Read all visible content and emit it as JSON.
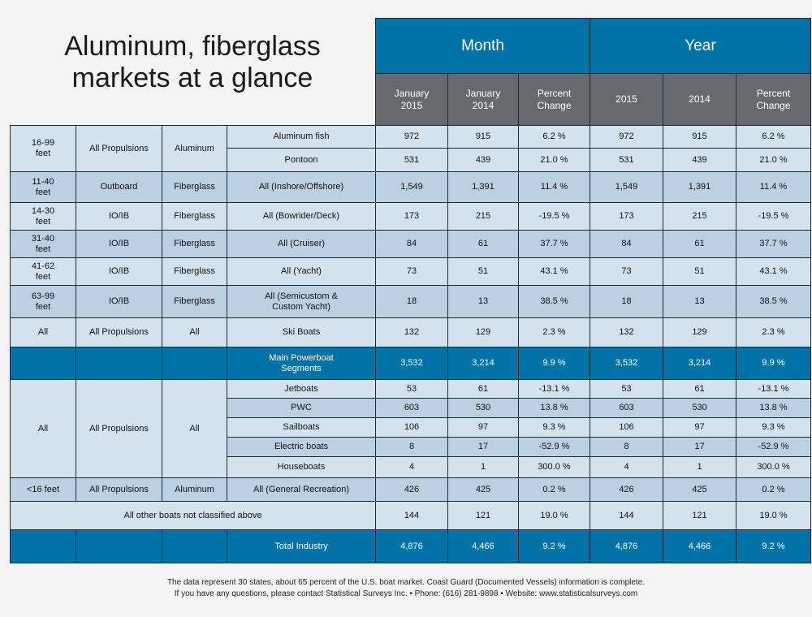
{
  "title_line1": "Aluminum, fiberglass",
  "title_line2": "markets at a glance",
  "header": {
    "month": "Month",
    "year": "Year",
    "month_cols": [
      "January\n2015",
      "January\n2014",
      "Percent\nChange"
    ],
    "year_cols": [
      "2015",
      "2014",
      "Percent\nChange"
    ]
  },
  "rows": [
    {
      "size": "16-99\nfeet",
      "prop": "All Propulsions",
      "mat": "Aluminum",
      "seg": "Aluminum fish",
      "m15": "972",
      "m14": "915",
      "mpc": "6.2 %",
      "y15": "972",
      "y14": "915",
      "ypc": "6.2 %"
    },
    {
      "seg": "Pontoon",
      "m15": "531",
      "m14": "439",
      "mpc": "21.0 %",
      "y15": "531",
      "y14": "439",
      "ypc": "21.0 %"
    },
    {
      "size": "11-40\nfeet",
      "prop": "Outboard",
      "mat": "Fiberglass",
      "seg": "All (Inshore/Offshore)",
      "m15": "1,549",
      "m14": "1,391",
      "mpc": "11.4 %",
      "y15": "1,549",
      "y14": "1,391",
      "ypc": "11.4 %"
    },
    {
      "size": "14-30\nfeet",
      "prop": "IO/IB",
      "mat": "Fiberglass",
      "seg": "All (Bowrider/Deck)",
      "m15": "173",
      "m14": "215",
      "mpc": "-19.5 %",
      "y15": "173",
      "y14": "215",
      "ypc": "-19.5 %"
    },
    {
      "size": "31-40\nfeet",
      "prop": "IO/IB",
      "mat": "Fiberglass",
      "seg": "All (Cruiser)",
      "m15": "84",
      "m14": "61",
      "mpc": "37.7 %",
      "y15": "84",
      "y14": "61",
      "ypc": "37.7 %"
    },
    {
      "size": "41-62\nfeet",
      "prop": "IO/IB",
      "mat": "Fiberglass",
      "seg": "All (Yacht)",
      "m15": "73",
      "m14": "51",
      "mpc": "43.1 %",
      "y15": "73",
      "y14": "51",
      "ypc": "43.1 %"
    },
    {
      "size": "63-99\nfeet",
      "prop": "IO/IB",
      "mat": "Fiberglass",
      "seg": "All (Semicustom &\nCustom Yacht)",
      "m15": "18",
      "m14": "13",
      "mpc": "38.5 %",
      "y15": "18",
      "y14": "13",
      "ypc": "38.5 %"
    },
    {
      "size": "All",
      "prop": "All Propulsions",
      "mat": "All",
      "seg": "Ski Boats",
      "m15": "132",
      "m14": "129",
      "mpc": "2.3 %",
      "y15": "132",
      "y14": "129",
      "ypc": "2.3 %"
    },
    {
      "seg": "Main Powerboat\nSegments",
      "m15": "3,532",
      "m14": "3,214",
      "mpc": "9.9 %",
      "y15": "3,532",
      "y14": "3,214",
      "ypc": "9.9 %"
    },
    {
      "size": "All",
      "prop": "All Propulsions",
      "mat": "All",
      "seg": "Jetboats",
      "m15": "53",
      "m14": "61",
      "mpc": "-13.1 %",
      "y15": "53",
      "y14": "61",
      "ypc": "-13.1 %"
    },
    {
      "seg": "PWC",
      "m15": "603",
      "m14": "530",
      "mpc": "13.8 %",
      "y15": "603",
      "y14": "530",
      "ypc": "13.8 %"
    },
    {
      "seg": "Sailboats",
      "m15": "106",
      "m14": "97",
      "mpc": "9.3 %",
      "y15": "106",
      "y14": "97",
      "ypc": "9.3 %"
    },
    {
      "seg": "Electric boats",
      "m15": "8",
      "m14": "17",
      "mpc": "-52.9 %",
      "y15": "8",
      "y14": "17",
      "ypc": "-52.9 %"
    },
    {
      "seg": "Houseboats",
      "m15": "4",
      "m14": "1",
      "mpc": "300.0 %",
      "y15": "4",
      "y14": "1",
      "ypc": "300.0 %"
    },
    {
      "size": "<16 feet",
      "prop": "All Propulsions",
      "mat": "Aluminum",
      "seg": "All (General Recreation)",
      "m15": "426",
      "m14": "425",
      "mpc": "0.2 %",
      "y15": "426",
      "y14": "425",
      "ypc": "0.2 %"
    },
    {
      "seg": "All other boats not classified above",
      "m15": "144",
      "m14": "121",
      "mpc": "19.0 %",
      "y15": "144",
      "y14": "121",
      "ypc": "19.0 %"
    },
    {
      "seg": "Total Industry",
      "m15": "4,876",
      "m14": "4,466",
      "mpc": "9.2 %",
      "y15": "4,876",
      "y14": "4,466",
      "ypc": "9.2 %"
    }
  ],
  "footnote_line1": "The data represent 30 states, about 65 percent of the U.S. boat market. Coast Guard (Documented Vessels) information is complete.",
  "footnote_line2": "If you have any questions, please contact Statistical Surveys Inc. • Phone: (616) 281-9898 • Website: www.statisticalsurveys.com",
  "colors": {
    "header_blue": "#0072a5",
    "header_gray": "#666a6f",
    "row_light": "#d4e2ee",
    "row_dark": "#bcd0e3"
  }
}
